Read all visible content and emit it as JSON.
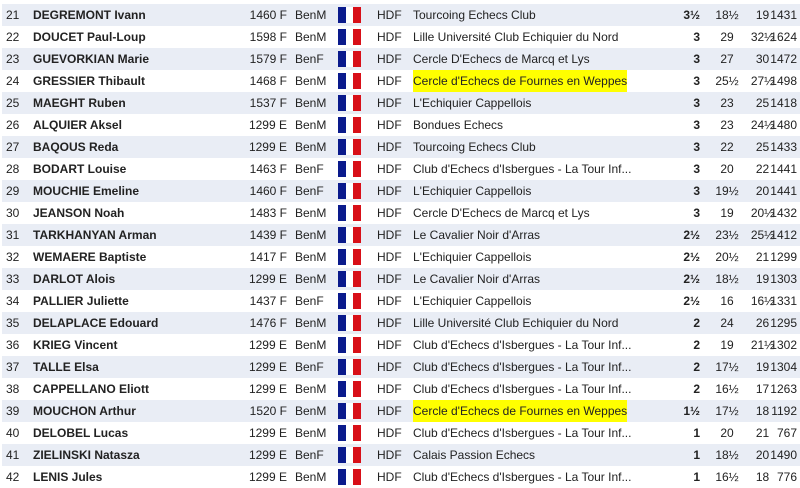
{
  "colors": {
    "row_alt": "#e9edf5",
    "highlight": "#ffff00",
    "flag_blue": "#0a1a8c",
    "flag_red": "#d80f18"
  },
  "rows": [
    {
      "rank": "21",
      "name": "DEGREMONT Ivann",
      "elo": "1460 F",
      "cat": "BenM",
      "flag": "france-flag-icon",
      "league": "HDF",
      "club": "Tourcoing Echecs Club",
      "hl": false,
      "pts": "3½",
      "b1": "18½",
      "b2": "19",
      "perf": "1431"
    },
    {
      "rank": "22",
      "name": "DOUCET Paul-Loup",
      "elo": "1598 F",
      "cat": "BenM",
      "flag": "france-flag-icon",
      "league": "HDF",
      "club": "Lille Université Club Echiquier du Nord",
      "hl": false,
      "pts": "3",
      "b1": "29",
      "b2": "32½",
      "perf": "1624"
    },
    {
      "rank": "23",
      "name": "GUEVORKIAN Marie",
      "elo": "1579 F",
      "cat": "BenF",
      "flag": "france-flag-icon",
      "league": "HDF",
      "club": "Cercle D'Echecs de Marcq et Lys",
      "hl": false,
      "pts": "3",
      "b1": "27",
      "b2": "30",
      "perf": "1472"
    },
    {
      "rank": "24",
      "name": "GRESSIER Thibault",
      "elo": "1468 F",
      "cat": "BenM",
      "flag": "france-flag-icon",
      "league": "HDF",
      "club": "Cercle d'Echecs de Fournes en Weppes",
      "hl": true,
      "pts": "3",
      "b1": "25½",
      "b2": "27½",
      "perf": "1498"
    },
    {
      "rank": "25",
      "name": "MAEGHT Ruben",
      "elo": "1537 F",
      "cat": "BenM",
      "flag": "france-flag-icon",
      "league": "HDF",
      "club": "L'Echiquier Cappellois",
      "hl": false,
      "pts": "3",
      "b1": "23",
      "b2": "25",
      "perf": "1418"
    },
    {
      "rank": "26",
      "name": "ALQUIER Aksel",
      "elo": "1299 E",
      "cat": "BenM",
      "flag": "france-flag-icon",
      "league": "HDF",
      "club": "Bondues Echecs",
      "hl": false,
      "pts": "3",
      "b1": "23",
      "b2": "24½",
      "perf": "1480"
    },
    {
      "rank": "27",
      "name": "BAQOUS Reda",
      "elo": "1299 E",
      "cat": "BenM",
      "flag": "france-flag-icon",
      "league": "HDF",
      "club": "Tourcoing Echecs Club",
      "hl": false,
      "pts": "3",
      "b1": "22",
      "b2": "25",
      "perf": "1433"
    },
    {
      "rank": "28",
      "name": "BODART Louise",
      "elo": "1463 F",
      "cat": "BenF",
      "flag": "france-flag-icon",
      "league": "HDF",
      "club": "Club d'Echecs d'Isbergues - La Tour Inf...",
      "hl": false,
      "pts": "3",
      "b1": "20",
      "b2": "22",
      "perf": "1441"
    },
    {
      "rank": "29",
      "name": "MOUCHIE Emeline",
      "elo": "1460 F",
      "cat": "BenF",
      "flag": "france-flag-icon",
      "league": "HDF",
      "club": "L'Echiquier Cappellois",
      "hl": false,
      "pts": "3",
      "b1": "19½",
      "b2": "20",
      "perf": "1441"
    },
    {
      "rank": "30",
      "name": "JEANSON Noah",
      "elo": "1483 F",
      "cat": "BenM",
      "flag": "france-flag-icon",
      "league": "HDF",
      "club": "Cercle D'Echecs de Marcq et Lys",
      "hl": false,
      "pts": "3",
      "b1": "19",
      "b2": "20½",
      "perf": "1432"
    },
    {
      "rank": "31",
      "name": "TARKHANYAN Arman",
      "elo": "1439 F",
      "cat": "BenM",
      "flag": "france-flag-icon",
      "league": "HDF",
      "club": "Le Cavalier Noir d'Arras",
      "hl": false,
      "pts": "2½",
      "b1": "23½",
      "b2": "25½",
      "perf": "1412"
    },
    {
      "rank": "32",
      "name": "WEMAERE Baptiste",
      "elo": "1417 F",
      "cat": "BenM",
      "flag": "france-flag-icon",
      "league": "HDF",
      "club": "L'Echiquier Cappellois",
      "hl": false,
      "pts": "2½",
      "b1": "20½",
      "b2": "21",
      "perf": "1299"
    },
    {
      "rank": "33",
      "name": "DARLOT Alois",
      "elo": "1299 E",
      "cat": "BenM",
      "flag": "france-flag-icon",
      "league": "HDF",
      "club": "Le Cavalier Noir d'Arras",
      "hl": false,
      "pts": "2½",
      "b1": "18½",
      "b2": "19",
      "perf": "1303"
    },
    {
      "rank": "34",
      "name": "PALLIER Juliette",
      "elo": "1437 F",
      "cat": "BenF",
      "flag": "france-flag-icon",
      "league": "HDF",
      "club": "L'Echiquier Cappellois",
      "hl": false,
      "pts": "2½",
      "b1": "16",
      "b2": "16½",
      "perf": "1331"
    },
    {
      "rank": "35",
      "name": "DELAPLACE Edouard",
      "elo": "1476 F",
      "cat": "BenM",
      "flag": "france-flag-icon",
      "league": "HDF",
      "club": "Lille Université Club Echiquier du Nord",
      "hl": false,
      "pts": "2",
      "b1": "24",
      "b2": "26",
      "perf": "1295"
    },
    {
      "rank": "36",
      "name": "KRIEG Vincent",
      "elo": "1299 E",
      "cat": "BenM",
      "flag": "france-flag-icon",
      "league": "HDF",
      "club": "Club d'Echecs d'Isbergues - La Tour Inf...",
      "hl": false,
      "pts": "2",
      "b1": "19",
      "b2": "21½",
      "perf": "1302"
    },
    {
      "rank": "37",
      "name": "TALLE Elsa",
      "elo": "1299 E",
      "cat": "BenF",
      "flag": "france-flag-icon",
      "league": "HDF",
      "club": "Club d'Echecs d'Isbergues - La Tour Inf...",
      "hl": false,
      "pts": "2",
      "b1": "17½",
      "b2": "19",
      "perf": "1304"
    },
    {
      "rank": "38",
      "name": "CAPPELLANO Eliott",
      "elo": "1299 E",
      "cat": "BenM",
      "flag": "france-flag-icon",
      "league": "HDF",
      "club": "Club d'Echecs d'Isbergues - La Tour Inf...",
      "hl": false,
      "pts": "2",
      "b1": "16½",
      "b2": "17",
      "perf": "1263"
    },
    {
      "rank": "39",
      "name": "MOUCHON Arthur",
      "elo": "1520 F",
      "cat": "BenM",
      "flag": "france-flag-icon",
      "league": "HDF",
      "club": "Cercle d'Echecs de Fournes en Weppes",
      "hl": true,
      "pts": "1½",
      "b1": "17½",
      "b2": "18",
      "perf": "1192"
    },
    {
      "rank": "40",
      "name": "DELOBEL Lucas",
      "elo": "1299 E",
      "cat": "BenM",
      "flag": "france-flag-icon",
      "league": "HDF",
      "club": "Club d'Echecs d'Isbergues - La Tour Inf...",
      "hl": false,
      "pts": "1",
      "b1": "20",
      "b2": "21",
      "perf": "767"
    },
    {
      "rank": "41",
      "name": "ZIELINSKI Natasza",
      "elo": "1299 E",
      "cat": "BenF",
      "flag": "france-flag-icon",
      "league": "HDF",
      "club": "Calais Passion Echecs",
      "hl": false,
      "pts": "1",
      "b1": "18½",
      "b2": "20",
      "perf": "1490"
    },
    {
      "rank": "42",
      "name": "LENIS Jules",
      "elo": "1299 E",
      "cat": "BenM",
      "flag": "france-flag-icon",
      "league": "HDF",
      "club": "Club d'Echecs d'Isbergues - La Tour Inf...",
      "hl": false,
      "pts": "1",
      "b1": "16½",
      "b2": "18",
      "perf": "776"
    }
  ]
}
